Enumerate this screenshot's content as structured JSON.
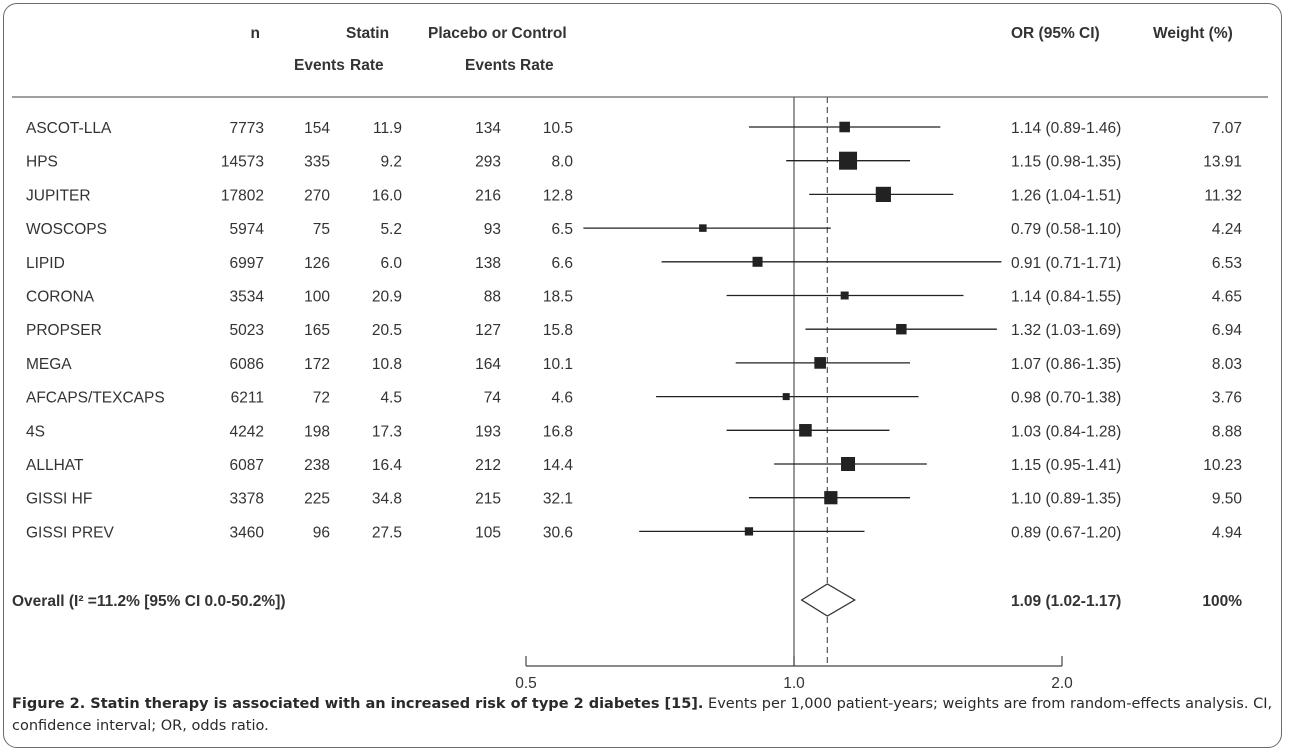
{
  "chart_data": {
    "type": "forest",
    "headers": {
      "n": "n",
      "statin": "Statin",
      "placebo": "Placebo or Control",
      "events": "Events",
      "rate": "Rate",
      "or": "OR (95% CI)",
      "weight": "Weight (%)"
    },
    "studies": [
      {
        "name": "ASCOT-LLA",
        "n": "7773",
        "statin_events": "154",
        "statin_rate": "11.9",
        "control_events": "134",
        "control_rate": "10.5",
        "or": 1.14,
        "lo": 0.89,
        "hi": 1.46,
        "or_text": "1.14 (0.89-1.46)",
        "weight": "7.07"
      },
      {
        "name": "HPS",
        "n": "14573",
        "statin_events": "335",
        "statin_rate": "9.2",
        "control_events": "293",
        "control_rate": "8.0",
        "or": 1.15,
        "lo": 0.98,
        "hi": 1.35,
        "or_text": "1.15 (0.98-1.35)",
        "weight": "13.91"
      },
      {
        "name": "JUPITER",
        "n": "17802",
        "statin_events": "270",
        "statin_rate": "16.0",
        "control_events": "216",
        "control_rate": "12.8",
        "or": 1.26,
        "lo": 1.04,
        "hi": 1.51,
        "or_text": "1.26 (1.04-1.51)",
        "weight": "11.32"
      },
      {
        "name": "WOSCOPS",
        "n": "5974",
        "statin_events": "75",
        "statin_rate": "5.2",
        "control_events": "93",
        "control_rate": "6.5",
        "or": 0.79,
        "lo": 0.58,
        "hi": 1.1,
        "or_text": "0.79 (0.58-1.10)",
        "weight": "4.24"
      },
      {
        "name": "LIPID",
        "n": "6997",
        "statin_events": "126",
        "statin_rate": "6.0",
        "control_events": "138",
        "control_rate": "6.6",
        "or": 0.91,
        "lo": 0.71,
        "hi": 1.71,
        "or_text": "0.91 (0.71-1.71)",
        "weight": "6.53"
      },
      {
        "name": "CORONA",
        "n": "3534",
        "statin_events": "100",
        "statin_rate": "20.9",
        "control_events": "88",
        "control_rate": "18.5",
        "or": 1.14,
        "lo": 0.84,
        "hi": 1.55,
        "or_text": "1.14 (0.84-1.55)",
        "weight": "4.65"
      },
      {
        "name": "PROPSER",
        "n": "5023",
        "statin_events": "165",
        "statin_rate": "20.5",
        "control_events": "127",
        "control_rate": "15.8",
        "or": 1.32,
        "lo": 1.03,
        "hi": 1.69,
        "or_text": "1.32 (1.03-1.69)",
        "weight": "6.94"
      },
      {
        "name": "MEGA",
        "n": "6086",
        "statin_events": "172",
        "statin_rate": "10.8",
        "control_events": "164",
        "control_rate": "10.1",
        "or": 1.07,
        "lo": 0.86,
        "hi": 1.35,
        "or_text": "1.07 (0.86-1.35)",
        "weight": "8.03"
      },
      {
        "name": "AFCAPS/TEXCAPS",
        "n": "6211",
        "statin_events": "72",
        "statin_rate": "4.5",
        "control_events": "74",
        "control_rate": "4.6",
        "or": 0.98,
        "lo": 0.7,
        "hi": 1.38,
        "or_text": "0.98 (0.70-1.38)",
        "weight": "3.76"
      },
      {
        "name": "4S",
        "n": "4242",
        "statin_events": "198",
        "statin_rate": "17.3",
        "control_events": "193",
        "control_rate": "16.8",
        "or": 1.03,
        "lo": 0.84,
        "hi": 1.28,
        "or_text": "1.03 (0.84-1.28)",
        "weight": "8.88"
      },
      {
        "name": "ALLHAT",
        "n": "6087",
        "statin_events": "238",
        "statin_rate": "16.4",
        "control_events": "212",
        "control_rate": "14.4",
        "or": 1.15,
        "lo": 0.95,
        "hi": 1.41,
        "or_text": "1.15 (0.95-1.41)",
        "weight": "10.23"
      },
      {
        "name": "GISSI HF",
        "n": "3378",
        "statin_events": "225",
        "statin_rate": "34.8",
        "control_events": "215",
        "control_rate": "32.1",
        "or": 1.1,
        "lo": 0.89,
        "hi": 1.35,
        "or_text": "1.10 (0.89-1.35)",
        "weight": "9.50"
      },
      {
        "name": "GISSI PREV",
        "n": "3460",
        "statin_events": "96",
        "statin_rate": "27.5",
        "control_events": "105",
        "control_rate": "30.6",
        "or": 0.89,
        "lo": 0.67,
        "hi": 1.2,
        "or_text": "0.89 (0.67-1.20)",
        "weight": "4.94"
      }
    ],
    "overall": {
      "label": "Overall (I² =11.2% [95% CI 0.0-50.2%])",
      "or": 1.09,
      "lo": 1.02,
      "hi": 1.17,
      "or_text": "1.09 (1.02-1.17)",
      "weight": "100%"
    },
    "x_scale": "log",
    "x_ticks": [
      {
        "value": 0.5,
        "label": "0.5"
      },
      {
        "value": 1.0,
        "label": "1.0"
      },
      {
        "value": 2.0,
        "label": "2.0"
      }
    ],
    "reference_line": 1.0,
    "pooled_line": 1.09
  },
  "caption": {
    "bold": "Figure 2. Statin therapy is associated with an increased risk of type 2 diabetes [15].",
    "text": " Events per 1,000 patient-years; weights are from random-effects analysis. CI, confidence interval; OR, odds ratio."
  }
}
